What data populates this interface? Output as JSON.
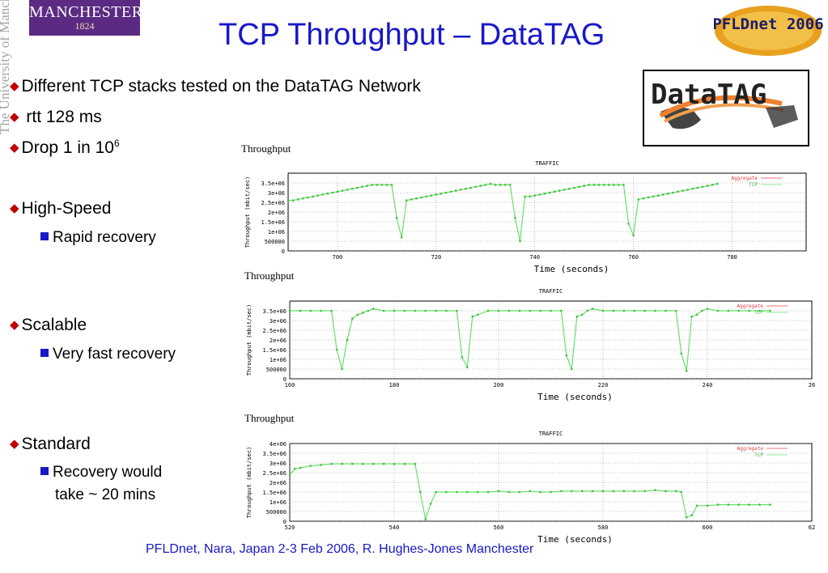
{
  "header": {
    "logo_text": "MANCHESTER",
    "logo_year": "1824",
    "university_vertical": "The University of Manchester",
    "title": "TCP Throughput – DataTAG",
    "pfldnet_logo_text": "PFLDnet 2006",
    "datatag_logo_text": "DataTAG"
  },
  "bullets": [
    {
      "text": "Different TCP stacks tested on the DataTAG Network"
    },
    {
      "text": " rtt 128 ms"
    },
    {
      "text": "Drop 1 in 10",
      "sup": "6"
    },
    {
      "text": "High-Speed"
    },
    {
      "sub": "Rapid recovery"
    },
    {
      "text": "Scalable"
    },
    {
      "sub": "Very fast recovery"
    },
    {
      "text": "Standard"
    },
    {
      "sub": "Recovery would"
    },
    {
      "sub_cont": "take ~ 20 mins"
    }
  ],
  "footer": "PFLDnet, Nara, Japan 2-3 Feb 2006,  R. Hughes-Jones  Manchester",
  "colors": {
    "title": "#1818c8",
    "bullet": "#c00000",
    "tcp_line": "#66e066",
    "aggregate": "#e04040"
  },
  "chart_data": [
    {
      "type": "line",
      "heading": "Throughput",
      "title": "TRAFFIC",
      "ylabel": "Throughput (mbit/sec)",
      "xlabel": "Time (seconds)",
      "xlim": [
        690,
        795
      ],
      "ylim": [
        0,
        4000000
      ],
      "yticks": [
        "0",
        "500000",
        "1e+06",
        "1.5e+06",
        "2e+06",
        "2.5e+06",
        "3e+06",
        "3.5e+06"
      ],
      "ytick_values": [
        0,
        500000,
        1000000,
        1500000,
        2000000,
        2500000,
        3000000,
        3500000
      ],
      "xticks": [
        700,
        720,
        740,
        760,
        780
      ],
      "legend": [
        "Aggregate",
        "TCP"
      ],
      "series": [
        {
          "name": "TCP",
          "x": [
            690,
            691,
            692,
            693,
            694,
            695,
            696,
            697,
            698,
            699,
            700,
            701,
            702,
            703,
            704,
            705,
            706,
            707,
            708,
            709,
            710,
            711,
            712,
            713,
            714,
            715,
            716,
            717,
            718,
            719,
            720,
            721,
            722,
            723,
            724,
            725,
            726,
            727,
            728,
            729,
            730,
            731,
            732,
            733,
            734,
            735,
            736,
            737,
            738,
            739,
            740,
            741,
            742,
            743,
            744,
            745,
            746,
            747,
            748,
            749,
            750,
            751,
            752,
            753,
            754,
            755,
            756,
            757,
            758,
            759,
            760,
            761,
            762,
            763,
            764,
            765,
            766,
            767,
            768,
            769,
            770,
            771,
            772,
            773,
            774,
            775,
            776,
            777
          ],
          "y": [
            2600000,
            2600000,
            2650000,
            2700000,
            2750000,
            2800000,
            2850000,
            2900000,
            2950000,
            3000000,
            3050000,
            3100000,
            3150000,
            3200000,
            3250000,
            3300000,
            3350000,
            3400000,
            3400000,
            3400000,
            3400000,
            3400000,
            1700000,
            700000,
            2600000,
            2650000,
            2700000,
            2750000,
            2800000,
            2850000,
            2900000,
            2950000,
            3000000,
            3050000,
            3100000,
            3150000,
            3200000,
            3250000,
            3300000,
            3350000,
            3400000,
            3450000,
            3400000,
            3400000,
            3400000,
            3400000,
            1700000,
            500000,
            2800000,
            2800000,
            2850000,
            2900000,
            2950000,
            3000000,
            3050000,
            3100000,
            3150000,
            3200000,
            3250000,
            3300000,
            3350000,
            3400000,
            3400000,
            3400000,
            3400000,
            3400000,
            3400000,
            3400000,
            3400000,
            1400000,
            800000,
            2650000,
            2700000,
            2750000,
            2800000,
            2850000,
            2900000,
            2950000,
            3000000,
            3050000,
            3100000,
            3150000,
            3200000,
            3250000,
            3300000,
            3350000,
            3400000,
            3450000
          ]
        }
      ]
    },
    {
      "type": "line",
      "heading": "Throughput",
      "title": "TRAFFIC",
      "ylabel": "Throughput (mbit/sec)",
      "xlabel": "Time (seconds)",
      "xlim": [
        160,
        260
      ],
      "ylim": [
        0,
        4000000
      ],
      "yticks": [
        "0",
        "500000",
        "1e+06",
        "1.5e+06",
        "2e+06",
        "2.5e+06",
        "3e+06",
        "3.5e+06"
      ],
      "ytick_values": [
        0,
        500000,
        1000000,
        1500000,
        2000000,
        2500000,
        3000000,
        3500000
      ],
      "xticks": [
        160,
        180,
        200,
        220,
        240
      ],
      "xticks_cut": "26",
      "legend": [
        "Aggregate",
        "TCP"
      ],
      "series": [
        {
          "name": "TCP",
          "x": [
            160,
            162,
            164,
            166,
            168,
            169,
            170,
            171,
            172,
            173,
            174,
            175,
            176,
            178,
            180,
            182,
            184,
            186,
            188,
            190,
            192,
            193,
            194,
            195,
            196,
            198,
            200,
            202,
            204,
            206,
            208,
            210,
            212,
            213,
            214,
            215,
            216,
            217,
            218,
            220,
            222,
            224,
            226,
            228,
            230,
            232,
            234,
            235,
            236,
            237,
            238,
            239,
            240,
            242,
            244,
            246,
            248,
            250,
            252
          ],
          "y": [
            3500000,
            3500000,
            3500000,
            3500000,
            3500000,
            1500000,
            500000,
            2000000,
            3100000,
            3300000,
            3400000,
            3500000,
            3600000,
            3500000,
            3500000,
            3500000,
            3500000,
            3500000,
            3500000,
            3500000,
            3500000,
            1100000,
            600000,
            3200000,
            3300000,
            3500000,
            3500000,
            3500000,
            3500000,
            3500000,
            3500000,
            3500000,
            3500000,
            1200000,
            500000,
            3200000,
            3300000,
            3500000,
            3600000,
            3500000,
            3500000,
            3500000,
            3500000,
            3500000,
            3500000,
            3500000,
            3500000,
            1300000,
            400000,
            3200000,
            3300000,
            3500000,
            3600000,
            3500000,
            3500000,
            3500000,
            3500000,
            3500000,
            3500000
          ]
        }
      ]
    },
    {
      "type": "line",
      "heading": "Throughput",
      "title": "TRAFFIC",
      "ylabel": "Throughput (mbit/sec)",
      "xlabel": "Time (seconds)",
      "xlim": [
        520,
        620
      ],
      "ylim": [
        0,
        4000000
      ],
      "yticks": [
        "0",
        "500000",
        "1e+06",
        "1.5e+06",
        "2e+06",
        "2.5e+06",
        "3e+06",
        "3.5e+06",
        "4e+06"
      ],
      "ytick_values": [
        0,
        500000,
        1000000,
        1500000,
        2000000,
        2500000,
        3000000,
        3500000,
        4000000
      ],
      "xticks": [
        520,
        540,
        560,
        580,
        600
      ],
      "xticks_cut": "62",
      "legend": [
        "Aggregate",
        "TCP"
      ],
      "series": [
        {
          "name": "TCP",
          "x": [
            520,
            521,
            522,
            524,
            526,
            528,
            530,
            532,
            534,
            536,
            538,
            540,
            542,
            544,
            545,
            546,
            547,
            548,
            550,
            552,
            554,
            556,
            558,
            560,
            562,
            564,
            566,
            568,
            570,
            572,
            574,
            576,
            578,
            580,
            582,
            584,
            586,
            588,
            590,
            592,
            594,
            595,
            596,
            597,
            598,
            600,
            602,
            604,
            606,
            608,
            610,
            612
          ],
          "y": [
            2400000,
            2700000,
            2750000,
            2850000,
            2900000,
            2950000,
            2950000,
            2950000,
            2950000,
            2950000,
            2950000,
            2950000,
            2950000,
            2950000,
            1500000,
            100000,
            900000,
            1500000,
            1500000,
            1500000,
            1500000,
            1500000,
            1500000,
            1550000,
            1500000,
            1500000,
            1550000,
            1500000,
            1500000,
            1550000,
            1550000,
            1550000,
            1550000,
            1550000,
            1550000,
            1550000,
            1550000,
            1550000,
            1600000,
            1550000,
            1550000,
            1500000,
            200000,
            300000,
            800000,
            800000,
            850000,
            850000,
            850000,
            850000,
            850000,
            850000
          ]
        }
      ]
    }
  ]
}
